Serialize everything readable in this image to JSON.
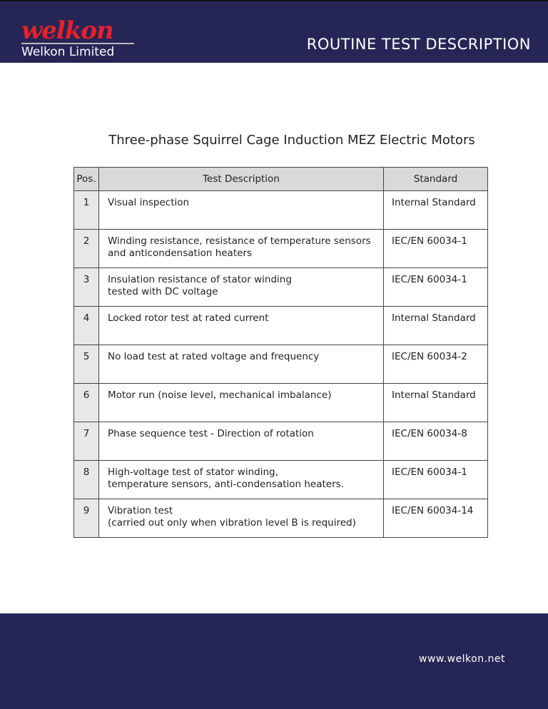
{
  "header": {
    "logo_word": "welkon",
    "logo_sub": "Welkon Limited",
    "title": "ROUTINE TEST DESCRIPTION"
  },
  "subtitle": "Three-phase Squirrel Cage Induction MEZ Electric Motors",
  "table": {
    "headers": [
      "Pos.",
      "Test Description",
      "Standard"
    ],
    "rows": [
      {
        "pos": "1",
        "desc": [
          "Visual inspection"
        ],
        "std": "Internal Standard"
      },
      {
        "pos": "2",
        "desc": [
          "Winding resistance, resistance of temperature sensors",
          "and anticondensation heaters"
        ],
        "std": "IEC/EN 60034-1"
      },
      {
        "pos": "3",
        "desc": [
          "Insulation resistance of stator winding",
          "tested with DC voltage"
        ],
        "std": "IEC/EN 60034-1"
      },
      {
        "pos": "4",
        "desc": [
          "Locked rotor test at rated current"
        ],
        "std": "Internal Standard"
      },
      {
        "pos": "5",
        "desc": [
          "No load test at rated voltage and frequency"
        ],
        "std": "IEC/EN 60034-2"
      },
      {
        "pos": "6",
        "desc": [
          "Motor run (noise level, mechanical imbalance)"
        ],
        "std": "Internal Standard"
      },
      {
        "pos": "7",
        "desc": [
          "Phase sequence test - Direction of rotation"
        ],
        "std": "IEC/EN 60034-8"
      },
      {
        "pos": "8",
        "desc": [
          "High-voltage test of stator winding,",
          "temperature sensors, anti-condensation heaters."
        ],
        "std": "IEC/EN 60034-1"
      },
      {
        "pos": "9",
        "desc": [
          "Vibration test",
          "(carried out only when vibration level B is required)"
        ],
        "std": "IEC/EN 60034-14"
      }
    ]
  },
  "footer": {
    "url": "www.welkon.net"
  },
  "colors": {
    "navy": "#262656",
    "logo_red": "#e8202a"
  }
}
